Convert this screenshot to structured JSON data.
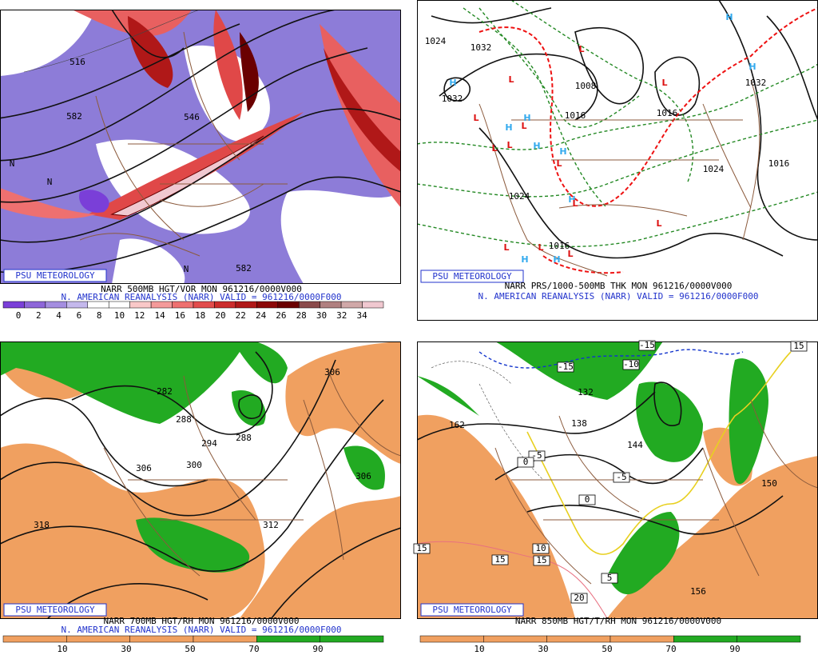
{
  "panels": [
    {
      "footer_label": "PSU METEOROLOGY",
      "caption": [
        "NARR 500MB HGT/VOR MON 961216/0000V000",
        "N. AMERICAN REANALYSIS (NARR) VALID = 961216/0000F000"
      ],
      "colorbar": {
        "labels": [
          "0",
          "2",
          "4",
          "6",
          "8",
          "10",
          "12",
          "14",
          "16",
          "18",
          "20",
          "22",
          "24",
          "26",
          "28",
          "30",
          "32",
          "34"
        ],
        "colors": [
          "#7a3fd8",
          "#8e66d9",
          "#a48ee0",
          "#c4b8ec",
          "#ffffff",
          "#ffffff",
          "#f9c8c8",
          "#f49a9a",
          "#ee7070",
          "#e24c4c",
          "#cc2c2c",
          "#b01818",
          "#8c0808",
          "#6a0000",
          "#8a4a4a",
          "#b08080",
          "#d0a8a8",
          "#f0c8d0"
        ]
      },
      "contour_labels": [
        "516",
        "582",
        "546",
        "582",
        "N",
        "N",
        "N"
      ]
    },
    {
      "footer_label": "PSU METEOROLOGY",
      "caption": [
        "NARR PRS/1000-500MB THK MON 961216/0000V000",
        "N. AMERICAN REANALYSIS (NARR) VALID = 961216/0000F000"
      ],
      "contour_labels": [
        "1032",
        "1032",
        "1024",
        "1008",
        "1016",
        "1016",
        "1016",
        "1024",
        "1016",
        "1032",
        "1024"
      ],
      "centers": [
        "H",
        "H",
        "H",
        "H",
        "H",
        "H",
        "H",
        "H",
        "H",
        "H",
        "L",
        "L",
        "L",
        "L",
        "L",
        "L",
        "L",
        "L",
        "L",
        "L",
        "L",
        "L",
        "L"
      ],
      "center_colors": {
        "H": "#33aaee",
        "L": "#dd1111"
      }
    },
    {
      "footer_label": "PSU METEOROLOGY",
      "caption": [
        "NARR 700MB HGT/RH MON 961216/0000V000",
        "N. AMERICAN REANALYSIS (NARR) VALID = 961216/0000F000"
      ],
      "colorbar": {
        "labels": [
          "10",
          "30",
          "50",
          "70",
          "90"
        ],
        "colors": [
          "#f0a060",
          "#f0a060",
          "#f0a060",
          "#f0a060",
          "#22aa22",
          "#22aa22"
        ]
      },
      "contour_labels": [
        "282",
        "288",
        "294",
        "300",
        "306",
        "306",
        "306",
        "318",
        "312",
        "288"
      ]
    },
    {
      "footer_label": "PSU METEOROLOGY",
      "caption": [
        "NARR 850MB HGT/T/RH MON 961216/0000V000"
      ],
      "colorbar": {
        "labels": [
          "10",
          "30",
          "50",
          "70",
          "90"
        ],
        "colors": [
          "#f0a060",
          "#f0a060",
          "#f0a060",
          "#f0a060",
          "#22aa22",
          "#22aa22"
        ]
      },
      "contour_labels": [
        "162",
        "138",
        "144",
        "150",
        "156",
        "132",
        "-15",
        "-10",
        "-15",
        "-5",
        "-5",
        "0",
        "0",
        "5",
        "10",
        "15",
        "15",
        "15",
        "20",
        "15"
      ]
    }
  ]
}
